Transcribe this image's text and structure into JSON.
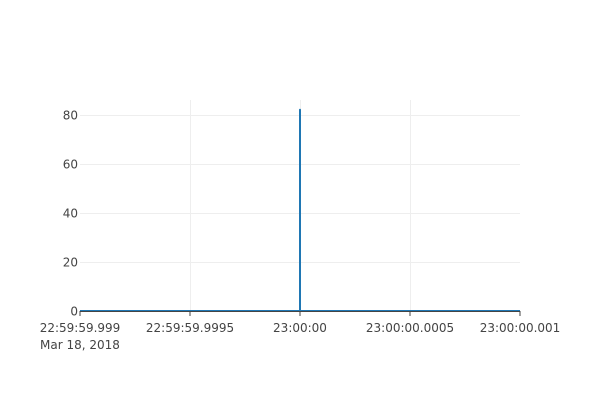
{
  "chart_data": {
    "type": "line",
    "title": "",
    "xlabel": "",
    "ylabel": "",
    "x_tick_labels": [
      "22:59:59.999",
      "22:59:59.9995",
      "23:00:00",
      "23:00:00.0005",
      "23:00:00.001"
    ],
    "x_date_label": "Mar 18, 2018",
    "x_ticks_ms": [
      -1,
      -0.5,
      0,
      0.5,
      1
    ],
    "xlim_ms": [
      -1,
      1
    ],
    "y_ticks": [
      0,
      20,
      40,
      60,
      80
    ],
    "ylim": [
      0,
      86
    ],
    "grid": true,
    "series": [
      {
        "color": "#1f77b4",
        "x_ms": [
          -1,
          0,
          0,
          0,
          1
        ],
        "y": [
          0,
          0,
          82,
          0,
          0
        ]
      }
    ]
  }
}
